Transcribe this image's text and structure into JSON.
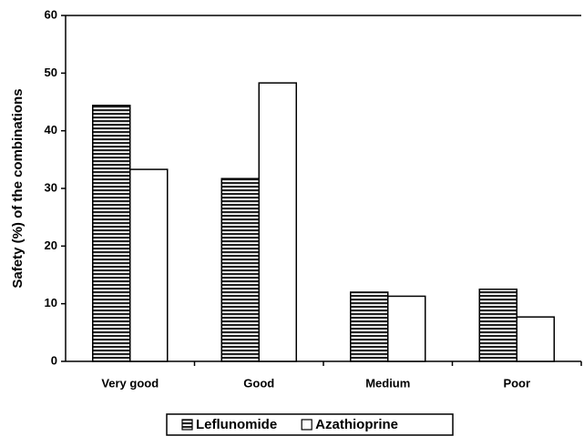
{
  "chart_data": {
    "type": "bar",
    "y_label": "Safety (%) of the combinations",
    "categories": [
      "Very good",
      "Good",
      "Medium",
      "Poor"
    ],
    "series": [
      {
        "name": "Leflunomide",
        "color": "#222222",
        "hatch": "horizontal",
        "values": [
          44.4,
          31.7,
          12,
          12.5
        ]
      },
      {
        "name": "Azathioprine",
        "color": "#ffffff",
        "values": [
          33.3,
          48.3,
          11.3,
          7.7
        ]
      }
    ],
    "ylim": [
      0,
      60
    ],
    "yticks": [
      0,
      10,
      20,
      30,
      40,
      50,
      60
    ],
    "grid": false,
    "legend": "bottom"
  }
}
